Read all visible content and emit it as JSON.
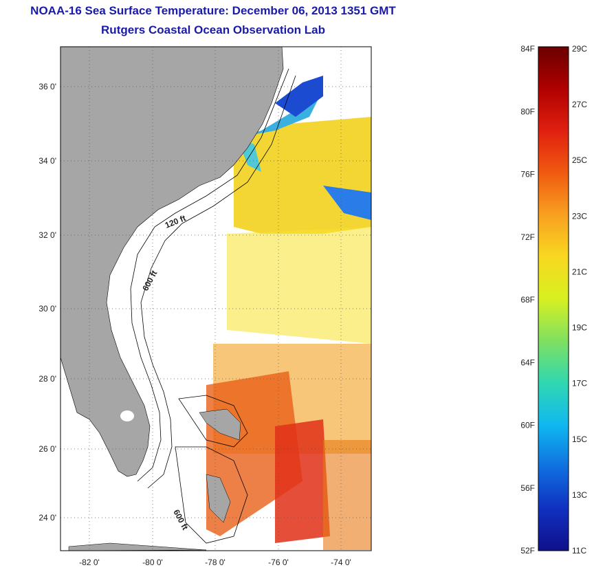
{
  "title": {
    "line1": "NOAA-16 Sea Surface Temperature:  December 06, 2013 1351 GMT",
    "line2": "Rutgers Coastal Ocean Observation Lab"
  },
  "map": {
    "lat_ticks": [
      "36 0'",
      "34 0'",
      "32 0'",
      "30 0'",
      "28 0'",
      "26 0'",
      "24 0'"
    ],
    "lon_ticks": [
      "-82 0'",
      "-80 0'",
      "-78 0'",
      "-76 0'",
      "-74 0'"
    ],
    "isobath_labels": [
      "120 ft",
      "600 ft",
      "600 ft"
    ],
    "land_color": "#a6a6a6",
    "ocean_color": "#ffffff"
  },
  "colorbar": {
    "fahrenheit_labels": [
      "84F",
      "80F",
      "76F",
      "72F",
      "68F",
      "64F",
      "60F",
      "56F",
      "52F"
    ],
    "celsius_labels": [
      "29C",
      "27C",
      "25C",
      "23C",
      "21C",
      "19C",
      "17C",
      "15C",
      "13C",
      "11C"
    ],
    "colors": [
      "#6b0000",
      "#b00000",
      "#e02010",
      "#f05a10",
      "#f8a020",
      "#f8d820",
      "#d8f020",
      "#80e060",
      "#30d8b0",
      "#10b8f0",
      "#1070e0",
      "#1030c0",
      "#10108a"
    ]
  }
}
